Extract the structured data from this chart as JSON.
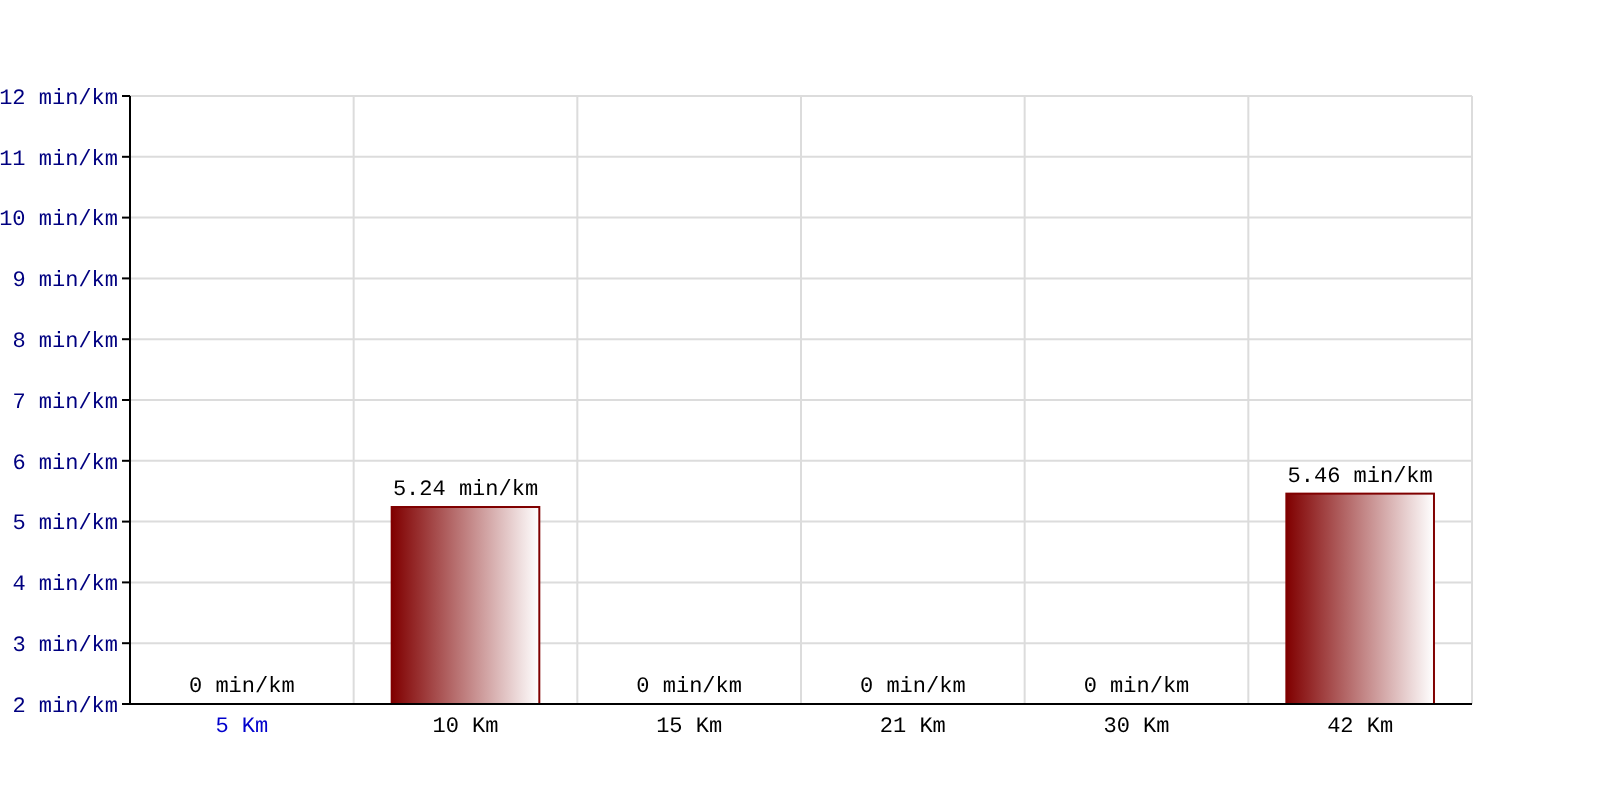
{
  "chart_data": {
    "type": "bar",
    "categories": [
      "5 Km",
      "10 Km",
      "15 Km",
      "21 Km",
      "30 Km",
      "42 Km"
    ],
    "values": [
      null,
      5.24,
      null,
      null,
      null,
      5.46
    ],
    "value_labels": [
      "0 min/km",
      "5.24 min/km",
      "0 min/km",
      "0 min/km",
      "0 min/km",
      "5.46 min/km"
    ],
    "color": "#800000",
    "ylim": [
      2,
      12
    ],
    "yticks": [
      {
        "value": 2,
        "label": "2 min/km"
      },
      {
        "value": 3,
        "label": "3 min/km"
      },
      {
        "value": 4,
        "label": "4 min/km"
      },
      {
        "value": 5,
        "label": "5 min/km"
      },
      {
        "value": 6,
        "label": "6 min/km"
      },
      {
        "value": 7,
        "label": "7 min/km"
      },
      {
        "value": 8,
        "label": "8 min/km"
      },
      {
        "value": 9,
        "label": "9 min/km"
      },
      {
        "value": 10,
        "label": "10 min/km"
      },
      {
        "value": 11,
        "label": "11 min/km"
      },
      {
        "value": 12,
        "label": "12 min/km"
      }
    ],
    "grid": true
  }
}
